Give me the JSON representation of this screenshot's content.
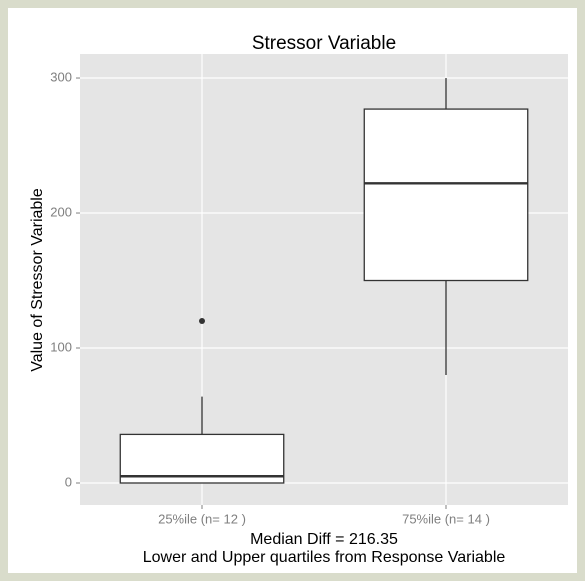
{
  "chart_data": {
    "type": "box",
    "title": "Stressor Variable",
    "y_label": "Value of Stressor Variable",
    "x_label": [
      "Median Diff =  216.35",
      "Lower and Upper quartiles from Response Variable"
    ],
    "categories": [
      "25%ile (n= 12 )",
      "75%ile (n= 14 )"
    ],
    "boxes": [
      {
        "low": 0,
        "q1": 0,
        "median": 5,
        "q3": 36,
        "high": 64,
        "outliers": [
          120
        ]
      },
      {
        "low": 80,
        "q1": 150,
        "median": 222,
        "q3": 277,
        "high": 300,
        "outliers": []
      }
    ],
    "color": "#ffffff",
    "ylim": [
      -16.3,
      317.8
    ],
    "yticks": [
      0,
      100,
      200,
      300
    ],
    "grid": true
  }
}
